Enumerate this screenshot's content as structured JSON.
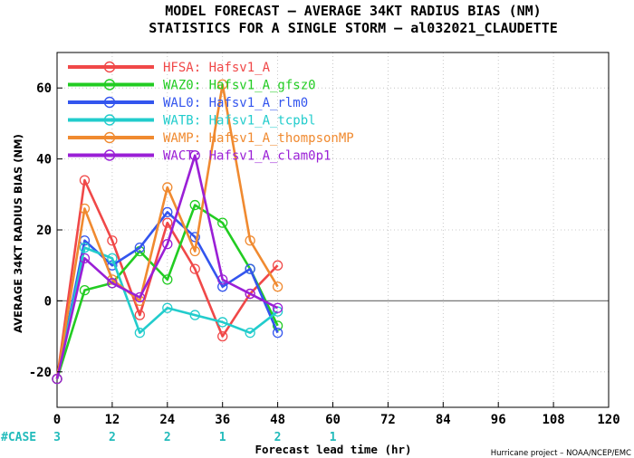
{
  "chart_data": {
    "type": "line",
    "title_line1": "MODEL FORECAST – AVERAGE 34KT RADIUS BIAS (NM)",
    "title_line2": "STATISTICS FOR A SINGLE STORM – al032021_CLAUDETTE",
    "ylabel": "AVERAGE 34KT RADIUS BIAS (NM)",
    "xlabel": "Forecast lead time (hr)",
    "footer": "Hurricane project – NOAA/NCEP/EMC",
    "xlim": [
      0,
      120
    ],
    "ylim": [
      -30,
      70
    ],
    "xticks": [
      0,
      12,
      24,
      36,
      48,
      60,
      72,
      84,
      96,
      108,
      120
    ],
    "yticks": [
      -20,
      0,
      20,
      40,
      60
    ],
    "xtick_labels": [
      "0",
      "12",
      "24",
      "36",
      "48",
      "60",
      "72",
      "84",
      "96",
      "108",
      "120"
    ],
    "ytick_labels": [
      "-20",
      "0",
      "20",
      "40",
      "60"
    ],
    "grid": true,
    "legend_position": "top-left",
    "case_label": "#CASE",
    "cases": [
      {
        "x": 0,
        "label": "3"
      },
      {
        "x": 12,
        "label": "2"
      },
      {
        "x": 24,
        "label": "2"
      },
      {
        "x": 36,
        "label": "1"
      },
      {
        "x": 48,
        "label": "2"
      },
      {
        "x": 60,
        "label": "1"
      }
    ],
    "x": [
      0,
      6,
      12,
      18,
      24,
      30,
      36,
      42,
      48
    ],
    "series": [
      {
        "name": "HFSA:  Hafsv1_A",
        "color": "#f04848",
        "values": [
          -22,
          34,
          17,
          -4,
          22,
          9,
          -10,
          2,
          10
        ]
      },
      {
        "name": "WAZ0:  Hafsv1_A_gfsz0",
        "color": "#22cc22",
        "values": [
          -22,
          3,
          5,
          14,
          6,
          27,
          22,
          9,
          -7
        ]
      },
      {
        "name": "WAL0:  Hafsv1_A_rlm0",
        "color": "#3355ee",
        "values": [
          -22,
          17,
          10,
          15,
          25,
          18,
          4,
          9,
          -9
        ]
      },
      {
        "name": "WATB:  Hafsv1_A_tcpbl",
        "color": "#22cccc",
        "values": [
          -22,
          15,
          12,
          -9,
          -2,
          -4,
          -6,
          -9,
          -3
        ]
      },
      {
        "name": "WAMP:  Hafsv1_A_thompsonMP",
        "color": "#f08a30",
        "values": [
          -22,
          26,
          6,
          0,
          32,
          14,
          61,
          17,
          4
        ]
      },
      {
        "name": "WACT:  Hafsv1_A_clam0p1",
        "color": "#9a1fd6",
        "values": [
          -22,
          12,
          5,
          1,
          16,
          41,
          6,
          2,
          -2
        ]
      }
    ]
  }
}
